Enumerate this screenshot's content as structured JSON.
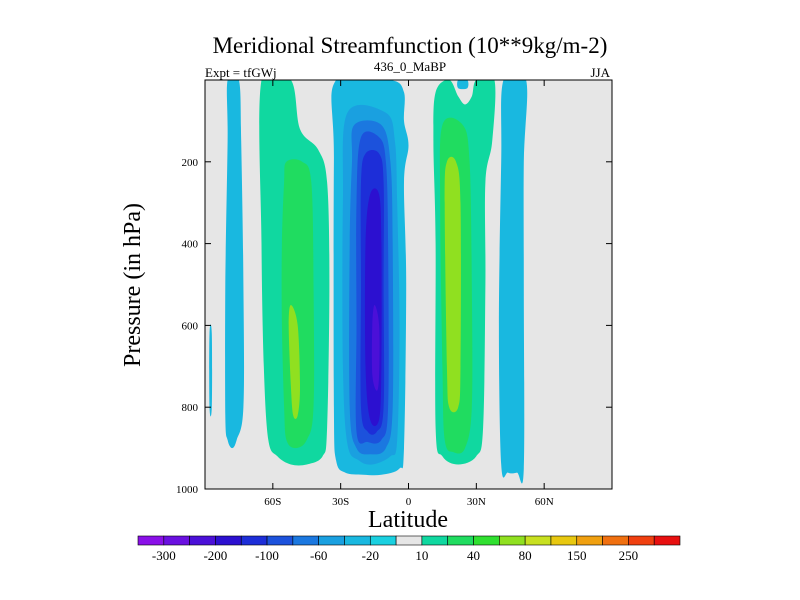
{
  "chart_data": {
    "type": "heatmap",
    "title": "Meridional Streamfunction (10**9kg/m-2)",
    "subtitle_left": "Expt = tfGWj",
    "subtitle_center": "436_0_MaBP",
    "subtitle_right": "JJA",
    "xlabel": "Latitude",
    "ylabel": "Pressure (in hPa)",
    "xlim": [
      -90,
      90
    ],
    "ylim": [
      1000,
      0
    ],
    "x_ticks": [
      {
        "value": -60,
        "label": "60S"
      },
      {
        "value": -30,
        "label": "30S"
      },
      {
        "value": 0,
        "label": "0"
      },
      {
        "value": 30,
        "label": "30N"
      },
      {
        "value": 60,
        "label": "60N"
      }
    ],
    "y_ticks": [
      {
        "value": 200,
        "label": "200"
      },
      {
        "value": 400,
        "label": "400"
      },
      {
        "value": 600,
        "label": "600"
      },
      {
        "value": 800,
        "label": "800"
      },
      {
        "value": 1000,
        "label": "1000"
      }
    ],
    "background_color": "#e6e6e6",
    "colorbar": {
      "levels": [
        "-300",
        "-250",
        "-200",
        "-150",
        "-100",
        "-80",
        "-60",
        "-40",
        "-20",
        "-10",
        "10",
        "20",
        "40",
        "60",
        "80",
        "100",
        "150",
        "200",
        "250",
        "300"
      ],
      "colors": [
        "#8a10e8",
        "#6a10e0",
        "#4b10d8",
        "#2c10d0",
        "#1d2ed8",
        "#1c52dc",
        "#1b78e0",
        "#1aa0e0",
        "#19b8e0",
        "#1ad0e0",
        "#e6e6e6",
        "#10d8a0",
        "#20dc60",
        "#30e030",
        "#90e020",
        "#c8e020",
        "#e8c810",
        "#f0a010",
        "#f07010",
        "#f04010",
        "#e81010"
      ],
      "labels": [
        "-300",
        "-200",
        "-100",
        "-60",
        "-20",
        "10",
        "40",
        "80",
        "150",
        "250"
      ]
    },
    "contour_regions": [
      {
        "name": "far-south-cell",
        "level": -20,
        "color": "#19b8e0",
        "points": [
          [
            -88,
            620
          ],
          [
            -88,
            800
          ],
          [
            -87,
            800
          ],
          [
            -87,
            620
          ]
        ]
      },
      {
        "name": "south-polar-cell",
        "level": -20,
        "color": "#19b8e0",
        "points": [
          [
            -80,
            0
          ],
          [
            -75,
            0
          ],
          [
            -74,
            150
          ],
          [
            -73,
            500
          ],
          [
            -73,
            800
          ],
          [
            -76,
            880
          ],
          [
            -78,
            900
          ],
          [
            -80,
            880
          ],
          [
            -81,
            820
          ],
          [
            -81,
            500
          ],
          [
            -80,
            150
          ]
        ]
      },
      {
        "name": "southern-ferrel-outer",
        "level": 10,
        "color": "#10d8a0",
        "points": [
          [
            -65,
            0
          ],
          [
            -52,
            0
          ],
          [
            -48,
            120
          ],
          [
            -40,
            170
          ],
          [
            -36,
            250
          ],
          [
            -35,
            500
          ],
          [
            -36,
            850
          ],
          [
            -38,
            920
          ],
          [
            -45,
            940
          ],
          [
            -52,
            940
          ],
          [
            -58,
            920
          ],
          [
            -62,
            880
          ],
          [
            -64,
            700
          ],
          [
            -65,
            400
          ]
        ]
      },
      {
        "name": "southern-ferrel-inner",
        "level": 20,
        "color": "#20dc60",
        "points": [
          [
            -54,
            200
          ],
          [
            -47,
            200
          ],
          [
            -43,
            250
          ],
          [
            -42,
            500
          ],
          [
            -42,
            800
          ],
          [
            -45,
            880
          ],
          [
            -50,
            900
          ],
          [
            -54,
            880
          ],
          [
            -55,
            800
          ],
          [
            -56,
            600
          ],
          [
            -56,
            400
          ],
          [
            -55,
            250
          ]
        ]
      },
      {
        "name": "southern-ferrel-core",
        "level": 40,
        "color": "#90e020",
        "points": [
          [
            -52,
            550
          ],
          [
            -49,
            600
          ],
          [
            -48,
            750
          ],
          [
            -49,
            820
          ],
          [
            -51,
            820
          ],
          [
            -52,
            750
          ],
          [
            -53,
            600
          ]
        ]
      },
      {
        "name": "hadley-outer",
        "level": -20,
        "color": "#19b8e0",
        "points": [
          [
            -32,
            0
          ],
          [
            -8,
            0
          ],
          [
            -2,
            30
          ],
          [
            -2,
            100
          ],
          [
            0,
            160
          ],
          [
            -2,
            250
          ],
          [
            -1,
            500
          ],
          [
            -2,
            900
          ],
          [
            -4,
            950
          ],
          [
            -12,
            965
          ],
          [
            -20,
            965
          ],
          [
            -28,
            960
          ],
          [
            -32,
            930
          ],
          [
            -33,
            800
          ],
          [
            -33,
            200
          ]
        ]
      },
      {
        "name": "hadley-l40",
        "level": -40,
        "color": "#1aa0e0",
        "points": [
          [
            -27,
            80
          ],
          [
            -10,
            80
          ],
          [
            -6,
            150
          ],
          [
            -5,
            300
          ],
          [
            -4,
            600
          ],
          [
            -5,
            880
          ],
          [
            -8,
            920
          ],
          [
            -16,
            940
          ],
          [
            -22,
            930
          ],
          [
            -27,
            890
          ],
          [
            -29,
            700
          ],
          [
            -29,
            300
          ]
        ]
      },
      {
        "name": "hadley-l60",
        "level": -60,
        "color": "#1b78e0",
        "points": [
          [
            -24,
            110
          ],
          [
            -12,
            110
          ],
          [
            -8,
            200
          ],
          [
            -7,
            400
          ],
          [
            -7,
            800
          ],
          [
            -10,
            900
          ],
          [
            -17,
            915
          ],
          [
            -23,
            900
          ],
          [
            -26,
            800
          ],
          [
            -26,
            400
          ],
          [
            -25,
            200
          ]
        ]
      },
      {
        "name": "hadley-l80",
        "level": -80,
        "color": "#1c52dc",
        "points": [
          [
            -21,
            140
          ],
          [
            -13,
            140
          ],
          [
            -10,
            200
          ],
          [
            -9,
            400
          ],
          [
            -9,
            800
          ],
          [
            -12,
            880
          ],
          [
            -18,
            885
          ],
          [
            -23,
            860
          ],
          [
            -23,
            600
          ],
          [
            -23,
            300
          ]
        ]
      },
      {
        "name": "hadley-l100",
        "level": -100,
        "color": "#1d2ed8",
        "points": [
          [
            -19,
            180
          ],
          [
            -13,
            180
          ],
          [
            -11,
            250
          ],
          [
            -11,
            500
          ],
          [
            -11,
            800
          ],
          [
            -14,
            860
          ],
          [
            -18,
            860
          ],
          [
            -21,
            800
          ],
          [
            -21,
            500
          ],
          [
            -21,
            250
          ]
        ]
      },
      {
        "name": "hadley-l150",
        "level": -150,
        "color": "#2c10d0",
        "points": [
          [
            -17,
            280
          ],
          [
            -13,
            280
          ],
          [
            -12,
            400
          ],
          [
            -12,
            700
          ],
          [
            -13,
            830
          ],
          [
            -17,
            830
          ],
          [
            -19,
            700
          ],
          [
            -19,
            400
          ]
        ]
      },
      {
        "name": "hadley-core",
        "level": -200,
        "color": "#4b10d8",
        "points": [
          [
            -15,
            550
          ],
          [
            -13,
            600
          ],
          [
            -13,
            720
          ],
          [
            -14,
            760
          ],
          [
            -16,
            720
          ],
          [
            -16,
            600
          ]
        ]
      },
      {
        "name": "northern-ferrel-outer",
        "level": 10,
        "color": "#10d8a0",
        "points": [
          [
            12,
            30
          ],
          [
            18,
            0
          ],
          [
            22,
            40
          ],
          [
            25,
            60
          ],
          [
            28,
            40
          ],
          [
            30,
            0
          ],
          [
            38,
            0
          ],
          [
            37,
            150
          ],
          [
            34,
            250
          ],
          [
            34,
            500
          ],
          [
            33,
            850
          ],
          [
            30,
            920
          ],
          [
            22,
            940
          ],
          [
            15,
            920
          ],
          [
            12,
            850
          ],
          [
            12,
            400
          ],
          [
            11,
            150
          ]
        ]
      },
      {
        "name": "northern-ferrel-inner",
        "level": 20,
        "color": "#20dc60",
        "points": [
          [
            15,
            110
          ],
          [
            24,
            110
          ],
          [
            27,
            200
          ],
          [
            28,
            500
          ],
          [
            28,
            800
          ],
          [
            25,
            900
          ],
          [
            20,
            910
          ],
          [
            16,
            880
          ],
          [
            15,
            700
          ],
          [
            14,
            300
          ]
        ]
      },
      {
        "name": "northern-ferrel-core",
        "level": 40,
        "color": "#90e020",
        "points": [
          [
            17,
            200
          ],
          [
            21,
            200
          ],
          [
            23,
            300
          ],
          [
            23,
            700
          ],
          [
            22,
            800
          ],
          [
            18,
            800
          ],
          [
            17,
            700
          ],
          [
            16,
            300
          ]
        ]
      },
      {
        "name": "north-top-cell",
        "level": -20,
        "color": "#19b8e0",
        "points": [
          [
            22,
            0
          ],
          [
            26,
            0
          ],
          [
            26,
            20
          ],
          [
            22,
            20
          ]
        ]
      },
      {
        "name": "north-polar-cell",
        "level": -20,
        "color": "#19b8e0",
        "points": [
          [
            42,
            0
          ],
          [
            52,
            0
          ],
          [
            51,
            200
          ],
          [
            51,
            500
          ],
          [
            51,
            950
          ],
          [
            48,
            960
          ],
          [
            44,
            960
          ],
          [
            41,
            940
          ],
          [
            40,
            600
          ],
          [
            41,
            200
          ]
        ]
      }
    ]
  }
}
